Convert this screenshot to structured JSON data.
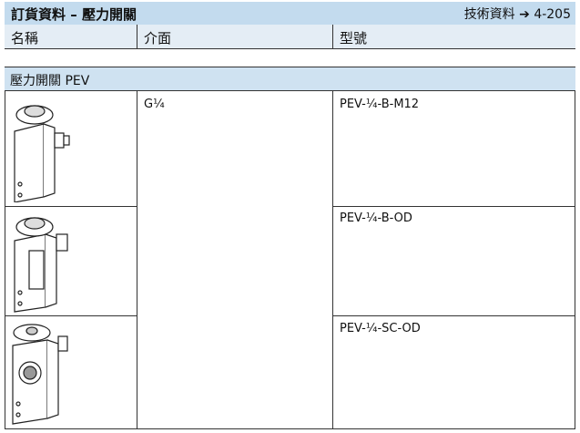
{
  "header": {
    "title": "訂貨資料 – 壓力開關",
    "reference": "技術資料 ➔ 4-205"
  },
  "table": {
    "columns": [
      "名稱",
      "介面",
      "型號"
    ],
    "section": "壓力開關 PEV",
    "interface": "G¼",
    "rows": [
      "PEV-¼-B-M12",
      "PEV-¼-B-OD",
      "PEV-¼-SC-OD"
    ]
  }
}
